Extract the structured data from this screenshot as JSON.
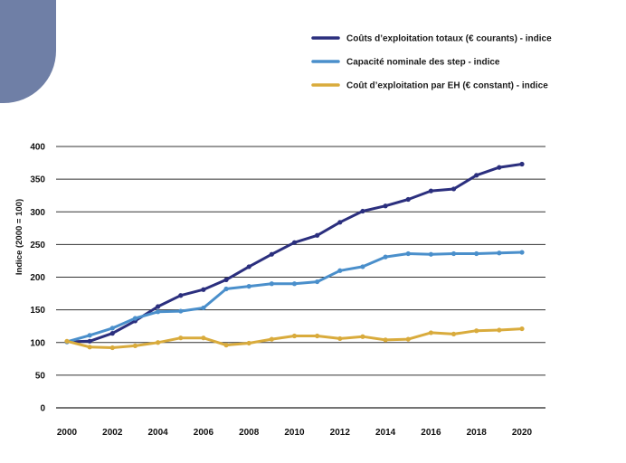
{
  "chart_data": {
    "type": "line",
    "title": "",
    "xlabel": "",
    "ylabel": "Indice (2000 = 100)",
    "ylim": [
      0,
      400
    ],
    "yticks": [
      0,
      50,
      100,
      150,
      200,
      250,
      300,
      350,
      400
    ],
    "xticks": [
      2000,
      2002,
      2004,
      2006,
      2008,
      2010,
      2012,
      2014,
      2016,
      2018,
      2020
    ],
    "grid": true,
    "legend_position": "top-right",
    "x": [
      2000,
      2001,
      2002,
      2003,
      2004,
      2005,
      2006,
      2007,
      2008,
      2009,
      2010,
      2011,
      2012,
      2013,
      2014,
      2015,
      2016,
      2017,
      2018,
      2019,
      2020
    ],
    "series": [
      {
        "name": "Coûts d’exploitation totaux (€ courants) - indice",
        "color": "#2b2f7e",
        "values": [
          101,
          102,
          114,
          133,
          155,
          172,
          181,
          196,
          216,
          235,
          253,
          264,
          284,
          301,
          309,
          319,
          332,
          335,
          356,
          368,
          373
        ]
      },
      {
        "name": "Capacité nominale des step - indice",
        "color": "#4a8fcb",
        "values": [
          101,
          111,
          122,
          137,
          147,
          148,
          153,
          182,
          186,
          190,
          190,
          193,
          210,
          216,
          231,
          236,
          235,
          236,
          236,
          237,
          238
        ]
      },
      {
        "name": "Coût d’exploitation par EH (€ constant) - indice",
        "color": "#d9ab3c",
        "values": [
          102,
          93,
          92,
          95,
          100,
          107,
          107,
          96,
          99,
          105,
          110,
          110,
          106,
          109,
          104,
          105,
          115,
          113,
          118,
          119,
          121
        ]
      }
    ]
  }
}
